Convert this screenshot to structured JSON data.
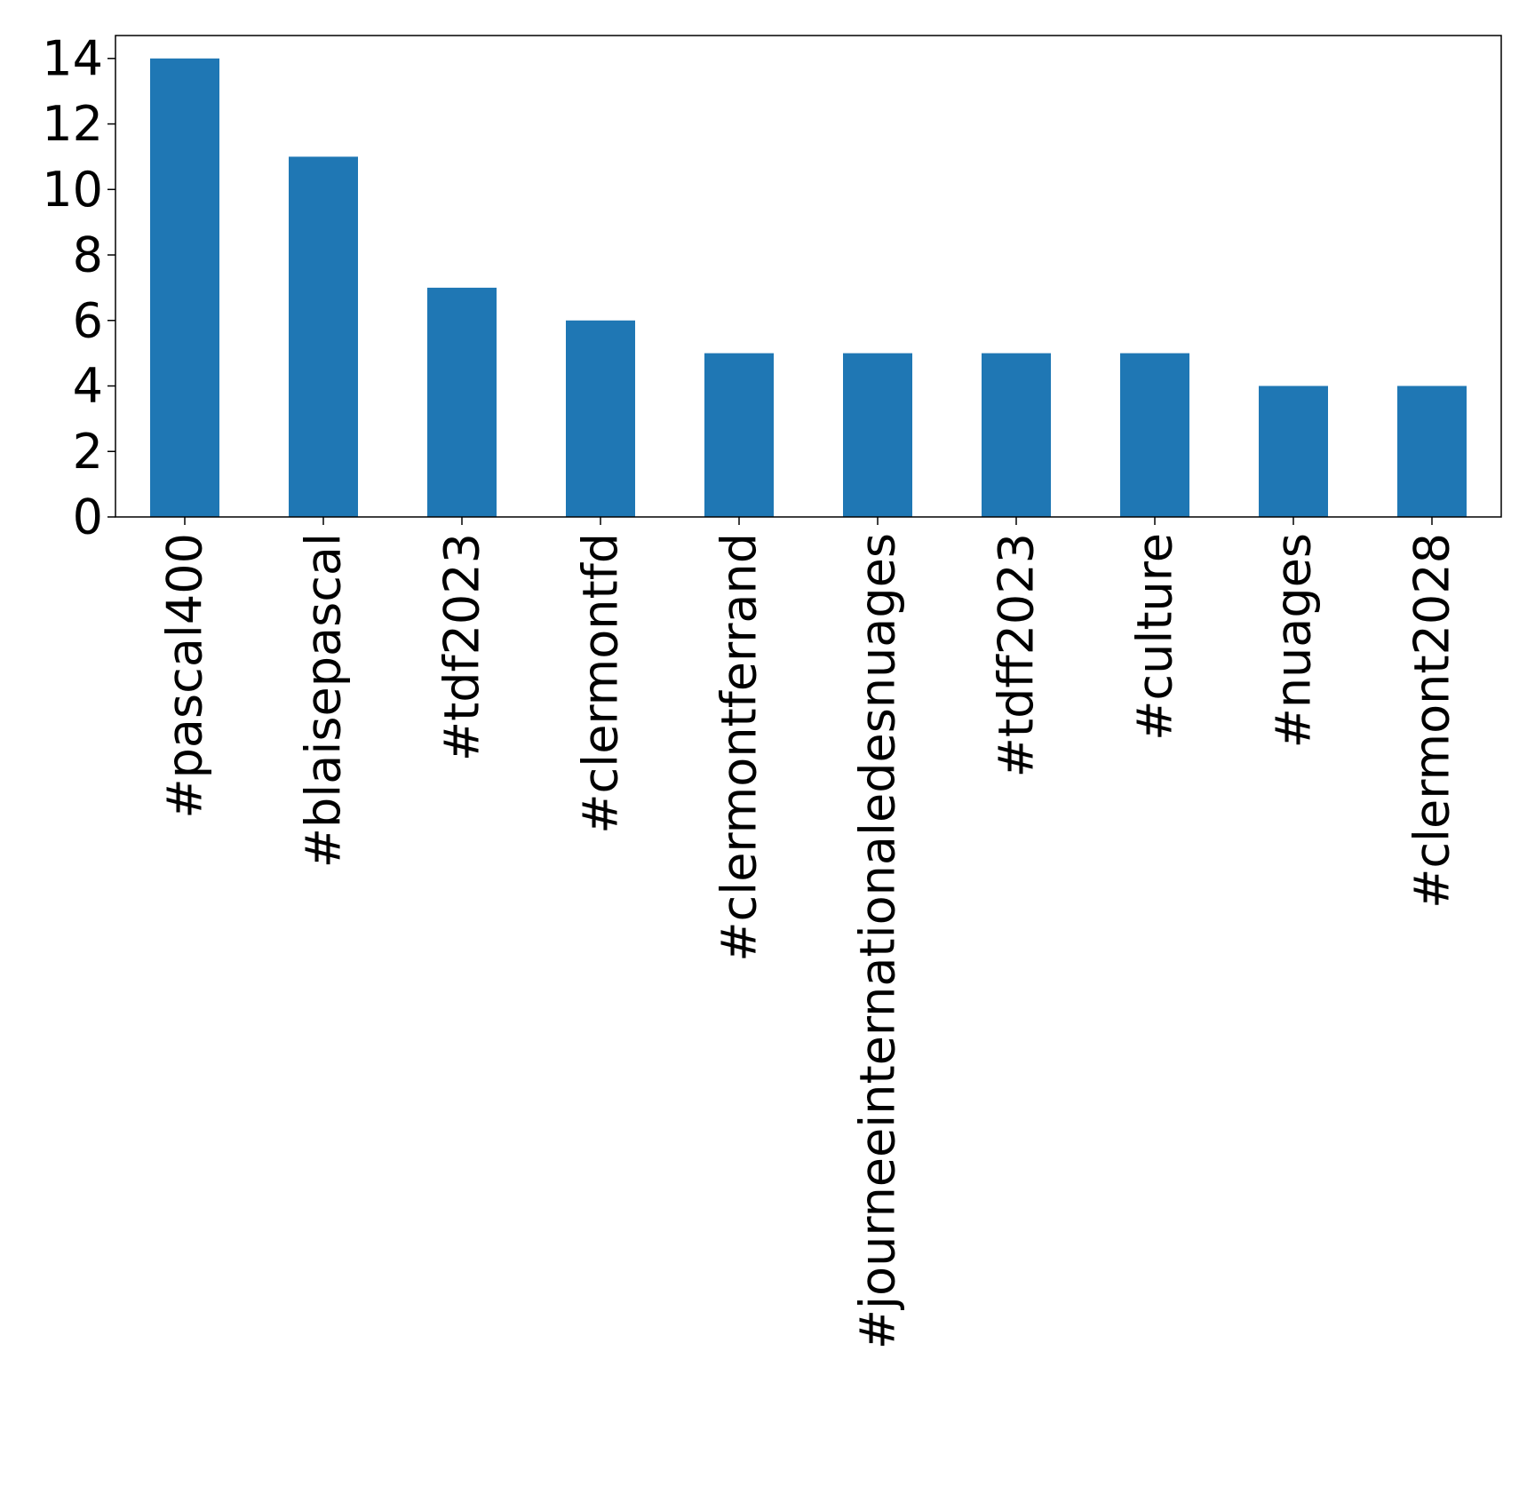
{
  "chart_data": {
    "type": "bar",
    "categories": [
      "#pascal400",
      "#blaisepascal",
      "#tdf2023",
      "#clermontfd",
      "#clermontferrand",
      "#journeeinternationaledesnuages",
      "#tdff2023",
      "#culture",
      "#nuages",
      "#clermont2028"
    ],
    "values": [
      14,
      11,
      7,
      6,
      5,
      5,
      5,
      5,
      4,
      4
    ],
    "title": "",
    "xlabel": "",
    "ylabel": "",
    "ylim": [
      0,
      14.7
    ],
    "yticks": [
      "0",
      "2",
      "4",
      "6",
      "8",
      "10",
      "12",
      "14"
    ],
    "grid": false,
    "legend": "none",
    "bar_color": "#1f77b4"
  }
}
